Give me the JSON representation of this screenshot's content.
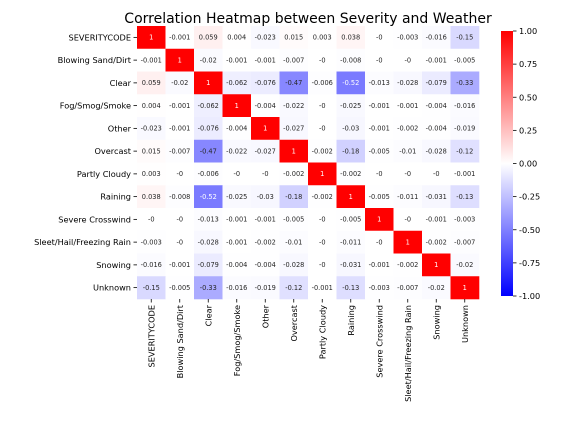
{
  "chart_data": {
    "type": "heatmap",
    "title": "Correlation Heatmap between Severity and Weather",
    "labels": [
      "SEVERITYCODE",
      "Blowing Sand/Dirt",
      "Clear",
      "Fog/Smog/Smoke",
      "Other",
      "Overcast",
      "Partly Cloudy",
      "Raining",
      "Severe Crosswind",
      "Sleet/Hail/Freezing Rain",
      "Snowing",
      "Unknown"
    ],
    "values": [
      [
        1,
        -0.001,
        0.059,
        0.004,
        -0.023,
        0.015,
        0.003,
        0.038,
        0,
        -0.003,
        -0.016,
        -0.15
      ],
      [
        -0.001,
        1,
        -0.02,
        -0.001,
        -0.001,
        -0.007,
        0,
        -0.008,
        0,
        0,
        -0.001,
        -0.005
      ],
      [
        0.059,
        -0.02,
        1,
        -0.062,
        -0.076,
        -0.47,
        -0.006,
        -0.52,
        -0.013,
        -0.028,
        -0.079,
        -0.33
      ],
      [
        0.004,
        -0.001,
        -0.062,
        1,
        -0.004,
        -0.022,
        0,
        -0.025,
        -0.001,
        -0.001,
        -0.004,
        -0.016
      ],
      [
        -0.023,
        -0.001,
        -0.076,
        -0.004,
        1,
        -0.027,
        0,
        -0.03,
        -0.001,
        -0.002,
        -0.004,
        -0.019
      ],
      [
        0.015,
        -0.007,
        -0.47,
        -0.022,
        -0.027,
        1,
        -0.002,
        -0.18,
        -0.005,
        -0.01,
        -0.028,
        -0.12
      ],
      [
        0.003,
        0,
        -0.006,
        0,
        0,
        -0.002,
        1,
        -0.002,
        0,
        0,
        0,
        -0.001
      ],
      [
        0.038,
        -0.008,
        -0.52,
        -0.025,
        -0.03,
        -0.18,
        -0.002,
        1,
        -0.005,
        -0.011,
        -0.031,
        -0.13
      ],
      [
        0,
        0,
        -0.013,
        -0.001,
        -0.001,
        -0.005,
        0,
        -0.005,
        1,
        0,
        -0.001,
        -0.003
      ],
      [
        -0.003,
        0,
        -0.028,
        -0.001,
        -0.002,
        -0.01,
        0,
        -0.011,
        0,
        1,
        -0.002,
        -0.007
      ],
      [
        -0.016,
        -0.001,
        -0.079,
        -0.004,
        -0.004,
        -0.028,
        0,
        -0.031,
        -0.001,
        -0.002,
        1,
        -0.02
      ],
      [
        -0.15,
        -0.005,
        -0.33,
        -0.016,
        -0.019,
        -0.12,
        -0.001,
        -0.13,
        -0.003,
        -0.007,
        -0.02,
        1
      ]
    ],
    "colormap": "bwr",
    "vmin": -1,
    "vmax": 1,
    "colorbar_ticks": [
      "1.00",
      "0.75",
      "0.50",
      "0.25",
      "0.00",
      "-0.25",
      "-0.50",
      "-0.75",
      "-1.00"
    ],
    "colors": {
      "low": "#0000ff",
      "mid": "#ffffff",
      "high": "#ff0000"
    },
    "annotated": true
  }
}
